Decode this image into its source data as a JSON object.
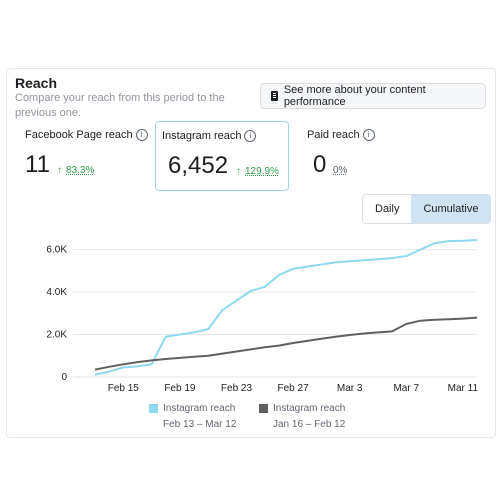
{
  "header": {
    "title": "Reach",
    "subtitle": "Compare your reach from this period to the previous one.",
    "perf_button_label": "See more about your content performance"
  },
  "metrics": [
    {
      "label": "Facebook Page reach",
      "value": "11",
      "change": "83.3%",
      "trend": "up"
    },
    {
      "label": "Instagram reach",
      "value": "6,452",
      "change": "129.9%",
      "trend": "up"
    },
    {
      "label": "Paid reach",
      "value": "0",
      "change": "0%",
      "trend": "none"
    }
  ],
  "icons": {
    "info": "i",
    "up_arrow": "↑"
  },
  "view_toggle": {
    "options": [
      "Daily",
      "Cumulative"
    ],
    "selected": "Cumulative"
  },
  "colors": {
    "current": "#8ed8f0",
    "previous": "#606060",
    "positive": "#31a24c",
    "selected_border": "#9fd8e4"
  },
  "legend": [
    {
      "name": "Instagram reach",
      "range": "Feb 13 – Mar 12",
      "color": "#8ed8f0"
    },
    {
      "name": "Instagram reach",
      "range": "Jan 16 – Feb 12",
      "color": "#606060"
    }
  ],
  "chart_data": {
    "type": "line",
    "x_ticks": [
      "Feb 15",
      "Feb 19",
      "Feb 23",
      "Feb 27",
      "Mar 3",
      "Mar 7",
      "Mar 11"
    ],
    "y_ticks": [
      "0",
      "2.0K",
      "4.0K",
      "6.0K"
    ],
    "ylim": [
      0,
      6500
    ],
    "grid": true,
    "x_start": "Feb 13",
    "x_end": "Mar 12",
    "series": [
      {
        "name": "Instagram reach",
        "range": "Feb 13 – Mar 12",
        "values": [
          100,
          250,
          450,
          500,
          600,
          1900,
          2000,
          2100,
          2250,
          3150,
          3600,
          4050,
          4250,
          4800,
          5100,
          5200,
          5300,
          5400,
          5450,
          5500,
          5550,
          5600,
          5700,
          6000,
          6300,
          6400,
          6420,
          6452
        ]
      },
      {
        "name": "Instagram reach",
        "range": "Jan 16 – Feb 12",
        "values": [
          350,
          480,
          600,
          700,
          780,
          850,
          900,
          950,
          1000,
          1100,
          1200,
          1300,
          1400,
          1480,
          1600,
          1700,
          1800,
          1900,
          1980,
          2050,
          2100,
          2150,
          2500,
          2650,
          2700,
          2720,
          2750,
          2800
        ]
      }
    ]
  }
}
